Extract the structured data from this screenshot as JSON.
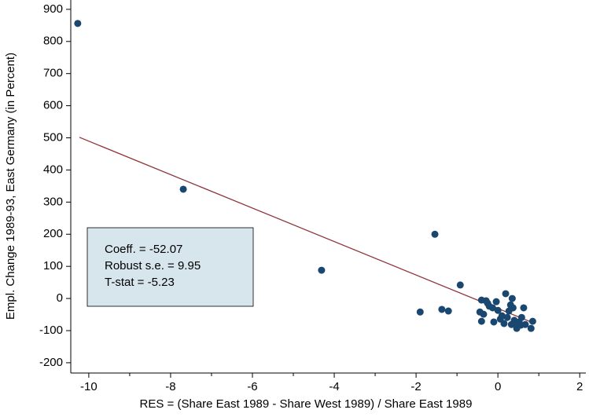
{
  "chart_data": {
    "type": "scatter",
    "xlabel": "RES = (Share East 1989 - Share West 1989) / Share East 1989",
    "ylabel": "Empl. Change 1989-93, East Germany (in Percent)",
    "annotations": [
      "Coeff. = -52.07",
      "Robust s.e. = 9.95",
      "T-stat = -5.23"
    ],
    "color": "#1a476f",
    "fit_color": "#90353b",
    "xlim": [
      -10.44,
      2.15
    ],
    "ylim": [
      -232,
      929
    ],
    "xticks": [
      -10,
      -8,
      -6,
      -4,
      -2,
      0,
      2
    ],
    "xminorticks": [
      -9,
      -7,
      -5,
      -3,
      -1,
      1
    ],
    "yticks": [
      -200,
      -100,
      0,
      100,
      200,
      300,
      400,
      500,
      600,
      700,
      800,
      900
    ],
    "x": [
      -10.27,
      -7.69,
      -4.31,
      -1.9,
      -1.54,
      -1.37,
      -1.21,
      -0.92,
      -0.4,
      -0.4,
      -0.44,
      -0.35,
      -0.29,
      -0.25,
      -0.21,
      -0.13,
      -0.1,
      -0.04,
      0,
      0.06,
      0.1,
      0.15,
      0.19,
      0.23,
      0.27,
      0.31,
      0.35,
      0.37,
      0.4,
      0.33,
      0.46,
      0.52,
      0.58,
      0.63,
      0.67,
      0.81,
      0.85,
      0.44,
      0.56
    ],
    "values": [
      856,
      340,
      88,
      -42,
      200,
      -34,
      -39,
      42,
      -5,
      -71,
      -42,
      -49,
      -7,
      -15,
      -24,
      -29,
      -73,
      -10,
      -37,
      -64,
      -54,
      -78,
      15,
      -59,
      -39,
      -20,
      0,
      -29,
      -68,
      -81,
      -93,
      -73,
      -59,
      -29,
      -81,
      -93,
      -71,
      -78,
      -83
    ],
    "fit": {
      "x": [
        -10.23,
        0.85
      ],
      "y": [
        501.7,
        -75.3
      ]
    }
  }
}
